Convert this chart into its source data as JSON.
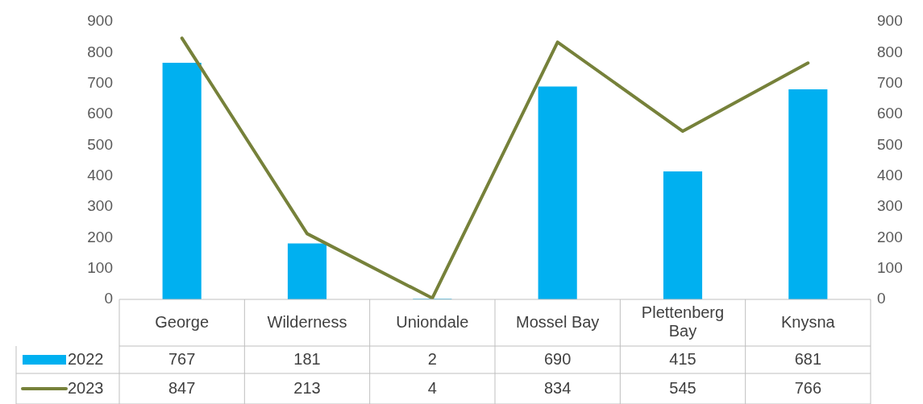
{
  "chart_data": {
    "type": "bar",
    "categories": [
      "George",
      "Wilderness",
      "Uniondale",
      "Mossel Bay",
      "Plettenberg Bay",
      "Knysna"
    ],
    "series": [
      {
        "name": "2022",
        "color": "#00b0f0",
        "values": [
          767,
          181,
          2,
          690,
          415,
          681
        ]
      },
      {
        "name": "2023",
        "type": "line",
        "axis": "y2",
        "color": "#76813a",
        "values": [
          847,
          213,
          4,
          834,
          545,
          766
        ]
      }
    ],
    "ylim": [
      0,
      900
    ],
    "yticks": [
      0,
      100,
      200,
      300,
      400,
      500,
      600,
      700,
      800,
      900
    ],
    "y2lim": [
      0,
      900
    ],
    "y2ticks": [
      0,
      100,
      200,
      300,
      400,
      500,
      600,
      700,
      800,
      900
    ],
    "data_labels": true,
    "legend": "bottom",
    "grid": false,
    "marker": "none"
  }
}
